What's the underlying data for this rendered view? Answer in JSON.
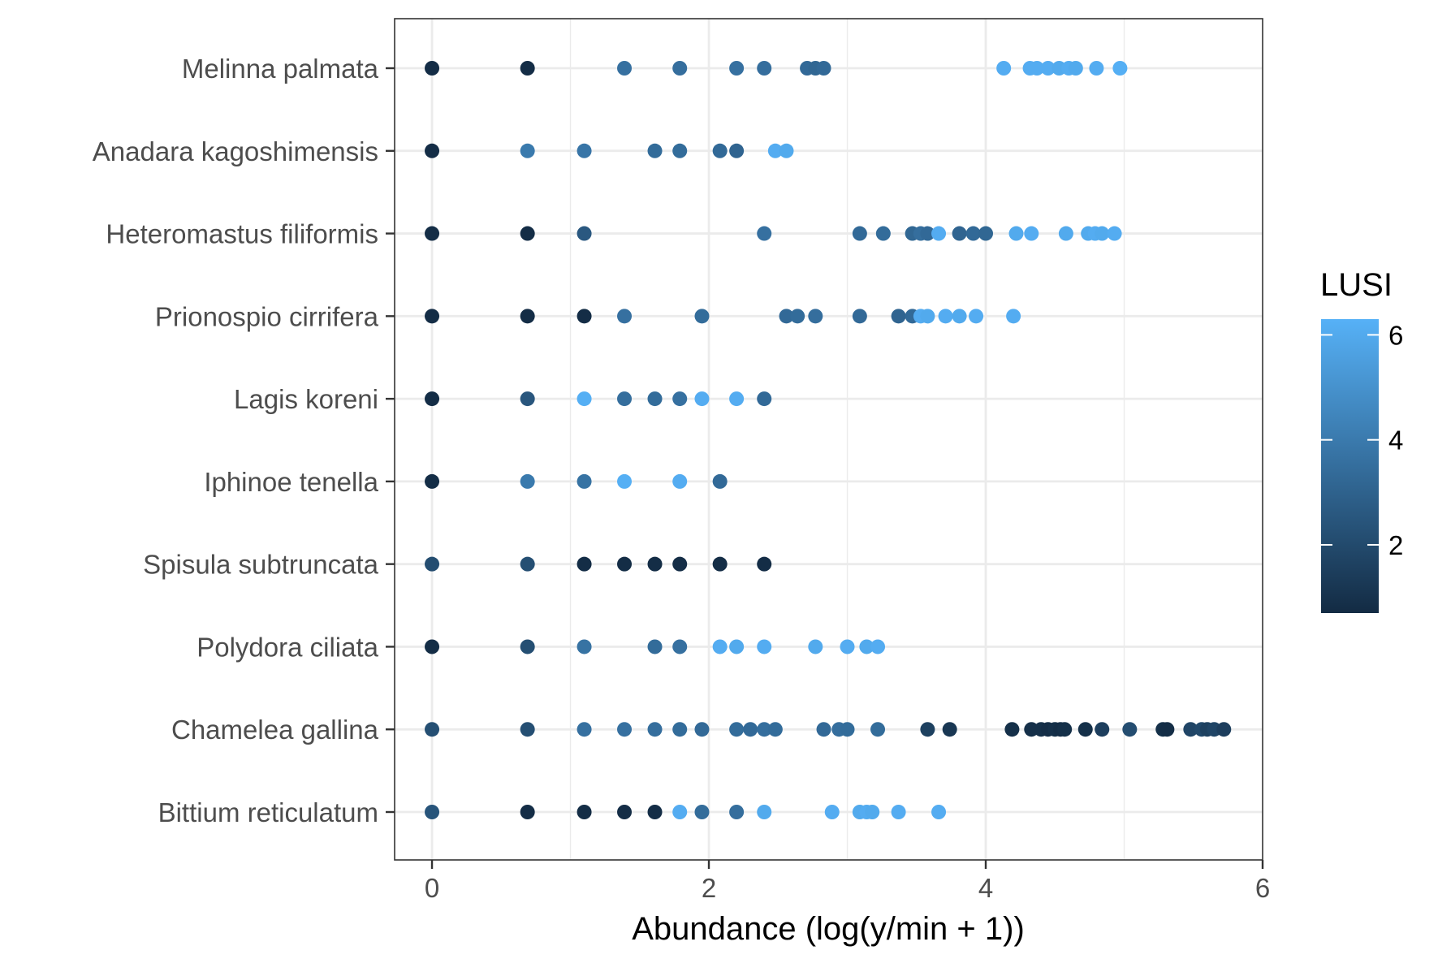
{
  "chart_data": {
    "type": "scatter",
    "xlabel": "Abundance (log(y/min + 1))",
    "xlim": [
      -0.27,
      6.0
    ],
    "x_ticks": [
      "0",
      "2",
      "4",
      "6"
    ],
    "x_tick_values": [
      0,
      2,
      4,
      6
    ],
    "grid": true,
    "categories": [
      "Melinna palmata",
      "Anadara kagoshimensis",
      "Heteromastus filiformis",
      "Prionospio cirrifera",
      "Lagis koreni",
      "Iphinoe tenella",
      "Spisula subtruncata",
      "Polydora ciliata",
      "Chamelea gallina",
      "Bittium reticulatum"
    ],
    "colorbar": {
      "title": "LUSI",
      "range": [
        0.7,
        6.3
      ],
      "ticks": [
        "2",
        "4",
        "6"
      ],
      "tick_values": [
        2,
        4,
        6
      ],
      "low_color": "#132B43",
      "high_color": "#56B1F7",
      "position": "right"
    },
    "series": [
      {
        "category": "Melinna palmata",
        "points": [
          [
            0,
            0.8
          ],
          [
            0.69,
            0.8
          ],
          [
            1.39,
            3.6
          ],
          [
            1.79,
            3.5
          ],
          [
            2.2,
            3.6
          ],
          [
            2.4,
            3.5
          ],
          [
            2.71,
            3.3
          ],
          [
            2.77,
            3.2
          ],
          [
            2.83,
            3.3
          ],
          [
            4.13,
            6.1
          ],
          [
            4.32,
            6.1
          ],
          [
            4.37,
            6.1
          ],
          [
            4.45,
            6.1
          ],
          [
            4.53,
            6.0
          ],
          [
            4.6,
            6.1
          ],
          [
            4.65,
            6.0
          ],
          [
            4.8,
            6.1
          ],
          [
            4.97,
            6.2
          ]
        ]
      },
      {
        "category": "Anadara kagoshimensis",
        "points": [
          [
            0,
            0.8
          ],
          [
            0.69,
            4.0
          ],
          [
            1.1,
            3.8
          ],
          [
            1.61,
            3.4
          ],
          [
            1.79,
            3.4
          ],
          [
            2.08,
            3.3
          ],
          [
            2.2,
            3.1
          ],
          [
            2.48,
            6.1
          ],
          [
            2.56,
            6.0
          ]
        ]
      },
      {
        "category": "Heteromastus filiformis",
        "points": [
          [
            0,
            0.8
          ],
          [
            0.69,
            0.8
          ],
          [
            1.1,
            2.6
          ],
          [
            2.4,
            3.6
          ],
          [
            3.09,
            3.3
          ],
          [
            3.26,
            3.4
          ],
          [
            3.47,
            3.2
          ],
          [
            3.53,
            3.5
          ],
          [
            3.58,
            3.3
          ],
          [
            3.66,
            6.1
          ],
          [
            3.81,
            3.1
          ],
          [
            3.91,
            3.3
          ],
          [
            4.0,
            3.2
          ],
          [
            4.22,
            6.0
          ],
          [
            4.33,
            6.1
          ],
          [
            4.58,
            6.0
          ],
          [
            4.74,
            6.0
          ],
          [
            4.79,
            6.1
          ],
          [
            4.84,
            6.0
          ],
          [
            4.93,
            6.1
          ]
        ]
      },
      {
        "category": "Prionospio cirrifera",
        "points": [
          [
            0,
            0.8
          ],
          [
            0.69,
            0.8
          ],
          [
            1.1,
            0.8
          ],
          [
            1.39,
            3.6
          ],
          [
            1.95,
            3.4
          ],
          [
            2.56,
            3.3
          ],
          [
            2.64,
            3.4
          ],
          [
            2.77,
            3.5
          ],
          [
            3.09,
            3.3
          ],
          [
            3.37,
            3.1
          ],
          [
            3.47,
            3.3
          ],
          [
            3.53,
            6.1
          ],
          [
            3.58,
            6.0
          ],
          [
            3.71,
            6.1
          ],
          [
            3.81,
            6.0
          ],
          [
            3.93,
            6.1
          ],
          [
            4.2,
            6.1
          ]
        ]
      },
      {
        "category": "Lagis koreni",
        "points": [
          [
            0,
            0.8
          ],
          [
            0.69,
            2.5
          ],
          [
            1.1,
            6.2
          ],
          [
            1.39,
            3.5
          ],
          [
            1.61,
            3.4
          ],
          [
            1.79,
            3.6
          ],
          [
            1.95,
            6.1
          ],
          [
            2.2,
            6.1
          ],
          [
            2.4,
            3.3
          ]
        ]
      },
      {
        "category": "Iphinoe tenella",
        "points": [
          [
            0,
            0.8
          ],
          [
            0.69,
            4.0
          ],
          [
            1.1,
            3.7
          ],
          [
            1.39,
            6.2
          ],
          [
            1.79,
            6.1
          ],
          [
            2.08,
            3.3
          ]
        ]
      },
      {
        "category": "Spisula subtruncata",
        "points": [
          [
            0,
            2.1
          ],
          [
            0.69,
            2.2
          ],
          [
            1.1,
            0.8
          ],
          [
            1.39,
            0.8
          ],
          [
            1.61,
            0.8
          ],
          [
            1.79,
            0.8
          ],
          [
            2.08,
            0.8
          ],
          [
            2.4,
            0.8
          ]
        ]
      },
      {
        "category": "Polydora ciliata",
        "points": [
          [
            0,
            0.8
          ],
          [
            0.69,
            2.2
          ],
          [
            1.1,
            3.7
          ],
          [
            1.61,
            3.4
          ],
          [
            1.79,
            3.6
          ],
          [
            2.08,
            6.1
          ],
          [
            2.2,
            6.0
          ],
          [
            2.4,
            6.1
          ],
          [
            2.77,
            6.0
          ],
          [
            3.0,
            6.1
          ],
          [
            3.14,
            6.0
          ],
          [
            3.22,
            6.1
          ]
        ]
      },
      {
        "category": "Chamelea gallina",
        "points": [
          [
            0,
            2.2
          ],
          [
            0.69,
            2.2
          ],
          [
            1.1,
            3.6
          ],
          [
            1.39,
            3.6
          ],
          [
            1.61,
            3.5
          ],
          [
            1.79,
            3.4
          ],
          [
            1.95,
            3.3
          ],
          [
            2.2,
            3.4
          ],
          [
            2.3,
            3.3
          ],
          [
            2.4,
            3.5
          ],
          [
            2.48,
            3.4
          ],
          [
            2.83,
            3.3
          ],
          [
            2.94,
            3.5
          ],
          [
            3.0,
            3.4
          ],
          [
            3.22,
            3.4
          ],
          [
            3.58,
            1.6
          ],
          [
            3.74,
            1.2
          ],
          [
            4.19,
            0.9
          ],
          [
            4.33,
            0.9
          ],
          [
            4.4,
            0.9
          ],
          [
            4.45,
            0.8
          ],
          [
            4.5,
            0.9
          ],
          [
            4.54,
            0.8
          ],
          [
            4.57,
            0.9
          ],
          [
            4.72,
            0.9
          ],
          [
            4.84,
            1.5
          ],
          [
            5.04,
            2.1
          ],
          [
            5.28,
            0.9
          ],
          [
            5.31,
            0.8
          ],
          [
            5.48,
            1.8
          ],
          [
            5.56,
            1.9
          ],
          [
            5.6,
            1.6
          ],
          [
            5.65,
            1.8
          ],
          [
            5.72,
            1.5
          ]
        ]
      },
      {
        "category": "Bittium reticulatum",
        "points": [
          [
            0,
            2.4
          ],
          [
            0.69,
            0.8
          ],
          [
            1.1,
            0.8
          ],
          [
            1.39,
            0.8
          ],
          [
            1.61,
            0.8
          ],
          [
            1.79,
            6.1
          ],
          [
            1.95,
            3.4
          ],
          [
            2.2,
            3.5
          ],
          [
            2.4,
            6.0
          ],
          [
            2.89,
            6.1
          ],
          [
            3.09,
            6.0
          ],
          [
            3.14,
            6.1
          ],
          [
            3.18,
            6.0
          ],
          [
            3.37,
            6.1
          ],
          [
            3.66,
            6.1
          ]
        ]
      }
    ]
  }
}
